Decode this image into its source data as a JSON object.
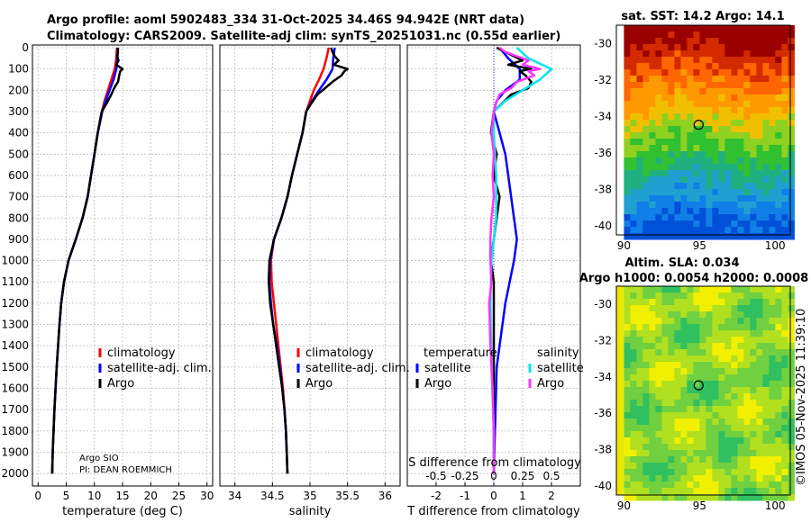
{
  "header": {
    "line1": "Argo profile: aoml 5902483_334 31-Oct-2025 34.46S 94.942E (NRT data)",
    "line2": "Climatology: CARS2009. Satellite-adj clim: synTS_20251031.nc (0.55d earlier)"
  },
  "colors": {
    "climatology": "#ff0000",
    "satellite": "#0000ff",
    "argo": "#000000",
    "t_sat": "#0000ff",
    "s_sat": "#00e5ee",
    "s_argo": "#ff33ff"
  },
  "chart_data": [
    {
      "type": "line",
      "id": "temperature",
      "xlabel": "temperature (deg C)",
      "xlim": [
        -1,
        31
      ],
      "xticks": [
        0,
        5,
        10,
        15,
        20,
        25,
        30
      ],
      "ylim": [
        0,
        2050
      ],
      "yticks": [
        0,
        100,
        200,
        300,
        400,
        500,
        600,
        700,
        800,
        900,
        1000,
        1100,
        1200,
        1300,
        1400,
        1500,
        1600,
        1700,
        1800,
        1900,
        2000
      ],
      "legend": [
        "climatology",
        "satellite-adj. clim.",
        "Argo"
      ],
      "legend_position": "lower-right",
      "annotation": [
        "Argo SIO",
        "PI: DEAN ROEMMICH"
      ],
      "series": [
        {
          "name": "climatology",
          "depth": [
            0,
            50,
            100,
            150,
            200,
            250,
            300,
            400,
            500,
            600,
            700,
            800,
            900,
            1000,
            1100,
            1200,
            1300,
            1500,
            1700,
            1900,
            2000
          ],
          "values": [
            14.0,
            13.9,
            13.6,
            13.0,
            12.4,
            11.8,
            11.3,
            10.6,
            10.0,
            9.4,
            8.8,
            7.9,
            6.7,
            5.4,
            4.6,
            4.1,
            3.8,
            3.3,
            2.9,
            2.6,
            2.5
          ]
        },
        {
          "name": "satellite-adj. clim.",
          "depth": [
            0,
            50,
            100,
            150,
            200,
            250,
            300,
            400,
            500,
            600,
            700,
            800,
            900,
            1000,
            1100,
            1200,
            1300,
            1500,
            1700,
            1900,
            2000
          ],
          "values": [
            14.2,
            14.1,
            13.9,
            13.4,
            12.7,
            12.0,
            11.4,
            10.6,
            10.0,
            9.4,
            8.8,
            7.9,
            6.7,
            5.4,
            4.6,
            4.1,
            3.8,
            3.3,
            2.9,
            2.6,
            2.5
          ]
        },
        {
          "name": "Argo",
          "depth": [
            0,
            20,
            40,
            60,
            80,
            100,
            110,
            130,
            160,
            190,
            220,
            260,
            300,
            400,
            500,
            600,
            700,
            800,
            900,
            1000,
            1100,
            1200,
            1300,
            1500,
            1700,
            1900,
            2000
          ],
          "values": [
            14.1,
            14.2,
            14.0,
            14.3,
            13.9,
            15.0,
            14.6,
            14.4,
            14.2,
            13.5,
            13.0,
            12.2,
            11.3,
            10.6,
            10.0,
            9.4,
            8.8,
            7.9,
            6.7,
            5.4,
            4.6,
            4.1,
            3.8,
            3.3,
            2.9,
            2.6,
            2.5
          ]
        }
      ]
    },
    {
      "type": "line",
      "id": "salinity",
      "xlabel": "salinity",
      "xlim": [
        33.8,
        36.2
      ],
      "xticks": [
        34,
        34.5,
        35,
        35.5,
        36
      ],
      "ylim": [
        0,
        2050
      ],
      "legend": [
        "climatology",
        "satellite-adj. clim.",
        "Argo"
      ],
      "legend_position": "lower-right",
      "series": [
        {
          "name": "climatology",
          "depth": [
            0,
            50,
            100,
            150,
            200,
            250,
            300,
            400,
            500,
            600,
            700,
            800,
            900,
            1000,
            1100,
            1200,
            1300,
            1400,
            1500,
            1600,
            1700,
            1800,
            1900,
            2000
          ],
          "values": [
            35.25,
            35.22,
            35.18,
            35.12,
            35.05,
            35.0,
            34.95,
            34.9,
            34.83,
            34.76,
            34.7,
            34.62,
            34.52,
            34.48,
            34.49,
            34.52,
            34.55,
            34.58,
            34.61,
            34.64,
            34.66,
            34.68,
            34.69,
            34.7
          ]
        },
        {
          "name": "satellite-adj. clim.",
          "depth": [
            0,
            50,
            100,
            150,
            200,
            250,
            300,
            400,
            500,
            600,
            700,
            800,
            900,
            1000,
            1100,
            1200,
            1300,
            1400,
            1500,
            1600,
            1700,
            1800,
            1900,
            2000
          ],
          "values": [
            35.33,
            35.31,
            35.3,
            35.22,
            35.12,
            35.03,
            34.95,
            34.9,
            34.83,
            34.76,
            34.7,
            34.62,
            34.52,
            34.47,
            34.46,
            34.48,
            34.51,
            34.56,
            34.6,
            34.63,
            34.66,
            34.68,
            34.69,
            34.7
          ]
        },
        {
          "name": "Argo",
          "depth": [
            0,
            20,
            40,
            60,
            80,
            100,
            110,
            130,
            160,
            190,
            220,
            260,
            300,
            400,
            500,
            600,
            700,
            800,
            900,
            1000,
            1100,
            1200,
            1300,
            1400,
            1500,
            1600,
            1700,
            1800,
            1900,
            2000
          ],
          "values": [
            35.28,
            35.3,
            35.33,
            35.38,
            35.32,
            35.5,
            35.46,
            35.42,
            35.3,
            35.2,
            35.1,
            35.02,
            34.95,
            34.9,
            34.83,
            34.76,
            34.7,
            34.62,
            34.52,
            34.46,
            34.45,
            34.47,
            34.51,
            34.55,
            34.59,
            34.63,
            34.66,
            34.68,
            34.69,
            34.7
          ]
        }
      ]
    },
    {
      "type": "line",
      "id": "difference",
      "xlabel": "T difference from climatology",
      "xlabel_top": "S difference from climatology",
      "xlim": [
        -3,
        3
      ],
      "xticks": [
        -2,
        -1,
        0,
        1,
        2
      ],
      "xticks_top": [
        "-0.5",
        "-0.25",
        "0",
        "0.25",
        "0.5"
      ],
      "ylim": [
        0,
        2050
      ],
      "legend_titles": [
        "temperature",
        "salinity"
      ],
      "legend": [
        "satellite",
        "Argo",
        "satellite",
        "Argo"
      ],
      "legend_position": "lower",
      "series": [
        {
          "name": "temperature satellite",
          "depth": [
            0,
            50,
            100,
            150,
            200,
            250,
            300,
            400,
            500,
            600,
            700,
            800,
            900,
            1000,
            1200,
            1500,
            2000
          ],
          "values": [
            0.2,
            0.5,
            0.9,
            0.9,
            0.4,
            0.1,
            0.0,
            0.2,
            0.4,
            0.5,
            0.6,
            0.7,
            0.8,
            0.7,
            0.4,
            0.1,
            0.0
          ]
        },
        {
          "name": "temperature Argo",
          "depth": [
            0,
            20,
            40,
            60,
            80,
            100,
            110,
            130,
            160,
            190,
            220,
            260,
            300,
            400,
            500,
            600,
            700,
            800,
            900,
            1000,
            1100,
            1200,
            1400,
            1600,
            1800,
            2000
          ],
          "values": [
            0.1,
            0.4,
            0.7,
            1.0,
            0.5,
            1.3,
            0.9,
            1.1,
            1.3,
            1.2,
            0.6,
            0.3,
            0.0,
            -0.1,
            0.1,
            0.0,
            0.2,
            0.1,
            0.0,
            -0.1,
            0.0,
            0.0,
            0.0,
            0.0,
            0.0,
            0.0
          ]
        },
        {
          "name": "salinity satellite",
          "depth": [
            0,
            50,
            100,
            150,
            200,
            250,
            300,
            400,
            600,
            800,
            1000,
            1200,
            1500,
            1800,
            2000
          ],
          "values": [
            0.2,
            0.3,
            0.5,
            0.4,
            0.25,
            0.1,
            0.0,
            0.0,
            0.02,
            0.02,
            -0.02,
            -0.03,
            -0.02,
            0.0,
            0.0
          ]
        },
        {
          "name": "salinity Argo",
          "depth": [
            0,
            20,
            40,
            60,
            80,
            100,
            110,
            130,
            160,
            190,
            220,
            260,
            300,
            400,
            500,
            600,
            700,
            800,
            900,
            1000,
            1100,
            1200,
            1400,
            1600,
            1800,
            2000
          ],
          "values": [
            0.05,
            0.1,
            0.2,
            0.3,
            0.25,
            0.4,
            0.3,
            0.35,
            0.2,
            0.15,
            0.05,
            0.02,
            0.0,
            -0.02,
            0.0,
            -0.01,
            0.0,
            -0.02,
            -0.03,
            -0.03,
            -0.02,
            -0.04,
            -0.03,
            -0.01,
            0.0,
            0.0
          ]
        }
      ]
    },
    {
      "type": "heatmap",
      "id": "sst_map",
      "title": "sat. SST: 14.2 Argo: 14.1",
      "xlim": [
        89.5,
        101
      ],
      "ylim": [
        -40.5,
        -29
      ],
      "xticks": [
        90,
        95,
        100
      ],
      "yticks": [
        -30,
        -32,
        -34,
        -36,
        -38,
        -40
      ],
      "marker": {
        "lon": 94.94,
        "lat": -34.46
      }
    },
    {
      "type": "heatmap",
      "id": "sla_map",
      "title_line1": "Altim. SLA: 0.034",
      "title_line2": "Argo h1000: 0.0054 h2000: 0.0008",
      "xlim": [
        89.5,
        101
      ],
      "ylim": [
        -40.5,
        -29
      ],
      "xticks": [
        90,
        95,
        100
      ],
      "yticks": [
        -30,
        -32,
        -34,
        -36,
        -38,
        -40
      ],
      "marker": {
        "lon": 94.94,
        "lat": -34.46
      }
    }
  ],
  "footer": {
    "credit": "©IMOS 05-Nov-2025 11:39:10"
  }
}
